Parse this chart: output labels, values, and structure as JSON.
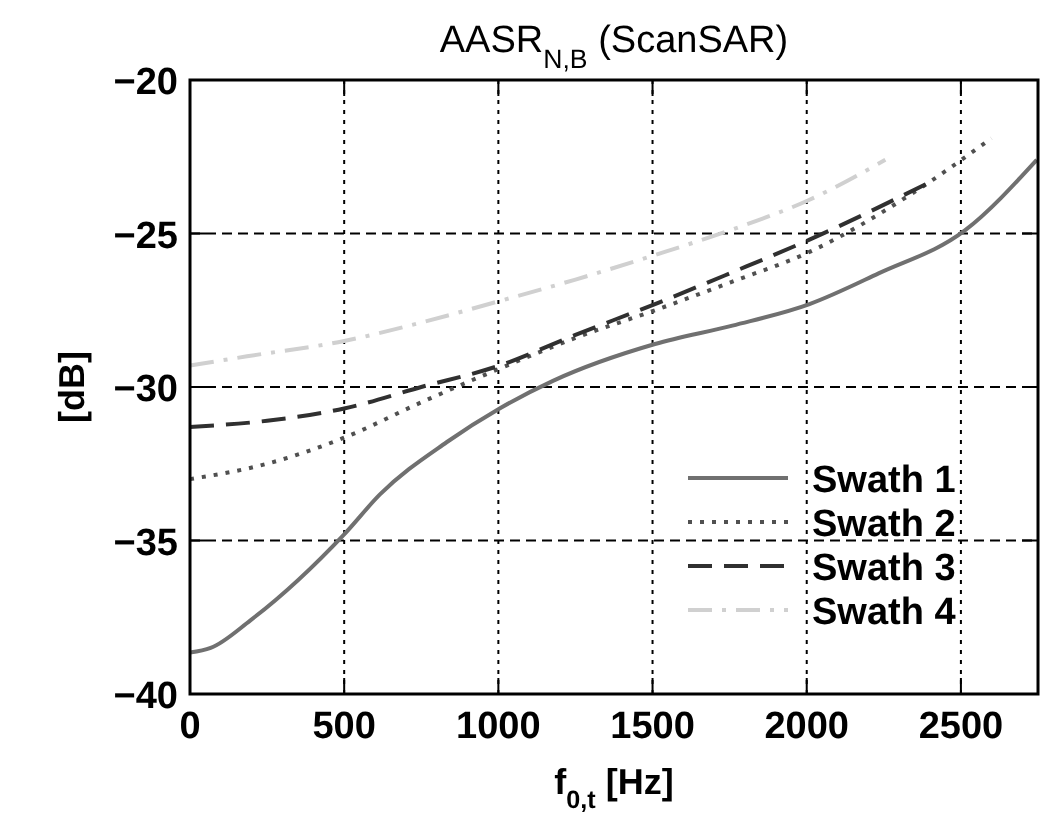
{
  "chart_data": {
    "type": "line",
    "title": "AASR$_{N,B}$ (ScanSAR)",
    "xlabel": "f$_{0,t}$ [Hz]",
    "ylabel": "[dB]",
    "xlim": [
      0,
      2750
    ],
    "xticks": [
      0,
      500,
      1000,
      1500,
      2000,
      2500
    ],
    "ylim": [
      -40,
      -20
    ],
    "yticks": [
      -40,
      -35,
      -30,
      -25,
      -20
    ],
    "grid": true,
    "legend": "bottom right",
    "series": [
      {
        "name": "Swath 1",
        "color": "#707070",
        "line_style": "solid",
        "x": [
          0,
          67,
          196,
          500,
          616,
          832,
          1004,
          1177,
          1508,
          1759,
          2009,
          2233,
          2513,
          2746
        ],
        "values": [
          -38.65,
          -38.5,
          -37.6,
          -34.8,
          -33.5,
          -31.8,
          -30.7,
          -29.8,
          -28.6,
          -28.0,
          -27.3,
          -26.3,
          -24.9,
          -22.6
        ]
      },
      {
        "name": "Swath 2",
        "color": "#505050",
        "line_style": "dotted",
        "x": [
          0,
          250,
          500,
          750,
          1004,
          1250,
          1508,
          1750,
          2009,
          2341,
          2599
        ],
        "values": [
          -33.0,
          -32.5,
          -31.65,
          -30.5,
          -29.4,
          -28.4,
          -27.5,
          -26.6,
          -25.6,
          -23.7,
          -21.9
        ]
      },
      {
        "name": "Swath 3",
        "color": "#303030",
        "line_style": "dashed",
        "x": [
          0,
          250,
          500,
          750,
          1004,
          1250,
          1508,
          1750,
          2009,
          2405
        ],
        "values": [
          -31.3,
          -31.1,
          -30.7,
          -30.0,
          -29.3,
          -28.3,
          -27.3,
          -26.3,
          -25.2,
          -23.3
        ]
      },
      {
        "name": "Swath 4",
        "color": "#d0d0d0",
        "line_style": "dashdot",
        "x": [
          0,
          185,
          500,
          750,
          1004,
          1250,
          1508,
          1750,
          2009,
          2255
        ],
        "values": [
          -29.3,
          -29.0,
          -28.5,
          -27.9,
          -27.2,
          -26.5,
          -25.7,
          -24.9,
          -23.9,
          -22.6
        ]
      }
    ]
  }
}
